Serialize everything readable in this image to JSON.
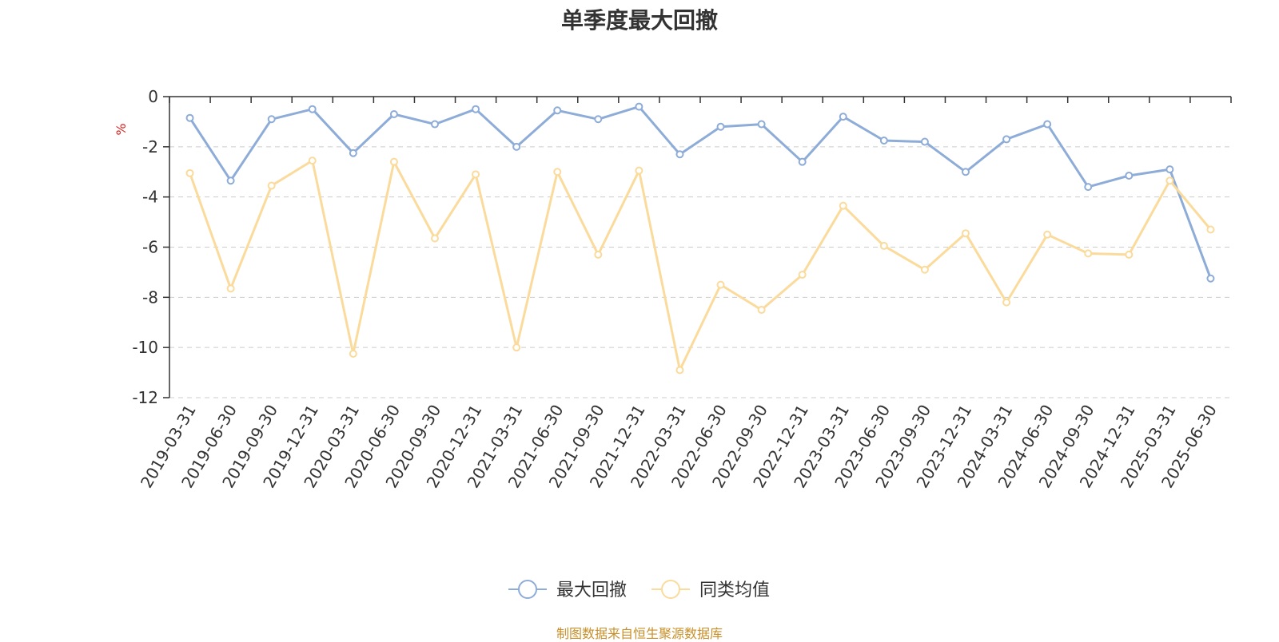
{
  "page": {
    "title": "单季度最大回撤",
    "source": "制图数据来自恒生聚源数据库"
  },
  "colors": {
    "series1": "#8eacd8",
    "series2": "#fbdb9c",
    "unit": "#e02020",
    "axis": "#333333",
    "grid": "#cccccc",
    "source": "#c8902a"
  },
  "chart_data": {
    "type": "line",
    "title": "单季度最大回撤",
    "ylabel": "%",
    "ylim": [
      -12,
      0
    ],
    "yticks": [
      0,
      -2,
      -4,
      -6,
      -8,
      -10,
      -12
    ],
    "grid": "horizontal dashed",
    "legend_position": "bottom-center",
    "x": [
      "2019-03-31",
      "2019-06-30",
      "2019-09-30",
      "2019-12-31",
      "2020-03-31",
      "2020-06-30",
      "2020-09-30",
      "2020-12-31",
      "2021-03-31",
      "2021-06-30",
      "2021-09-30",
      "2021-12-31",
      "2022-03-31",
      "2022-06-30",
      "2022-09-30",
      "2022-12-31",
      "2023-03-31",
      "2023-06-30",
      "2023-09-30",
      "2023-12-31",
      "2024-03-31",
      "2024-06-30",
      "2024-09-30",
      "2024-12-31",
      "2025-03-31",
      "2025-06-30"
    ],
    "series": [
      {
        "name": "最大回撤",
        "color": "#8eacd8",
        "values": [
          -0.85,
          -3.35,
          -0.9,
          -0.5,
          -2.25,
          -0.7,
          -1.1,
          -0.5,
          -2.0,
          -0.55,
          -0.9,
          -0.4,
          -2.3,
          -1.2,
          -1.1,
          -2.6,
          -0.8,
          -1.75,
          -1.8,
          -3.0,
          -1.7,
          -1.1,
          -3.6,
          -3.15,
          -2.9,
          -7.25
        ]
      },
      {
        "name": "同类均值",
        "color": "#fbdb9c",
        "values": [
          -3.05,
          -7.65,
          -3.55,
          -2.55,
          -10.25,
          -2.6,
          -5.65,
          -3.1,
          -10.0,
          -3.0,
          -6.3,
          -2.95,
          -10.9,
          -7.5,
          -8.5,
          -7.1,
          -4.35,
          -5.95,
          -6.9,
          -5.45,
          -8.2,
          -5.5,
          -6.25,
          -6.3,
          -3.35,
          -5.3
        ]
      }
    ]
  }
}
